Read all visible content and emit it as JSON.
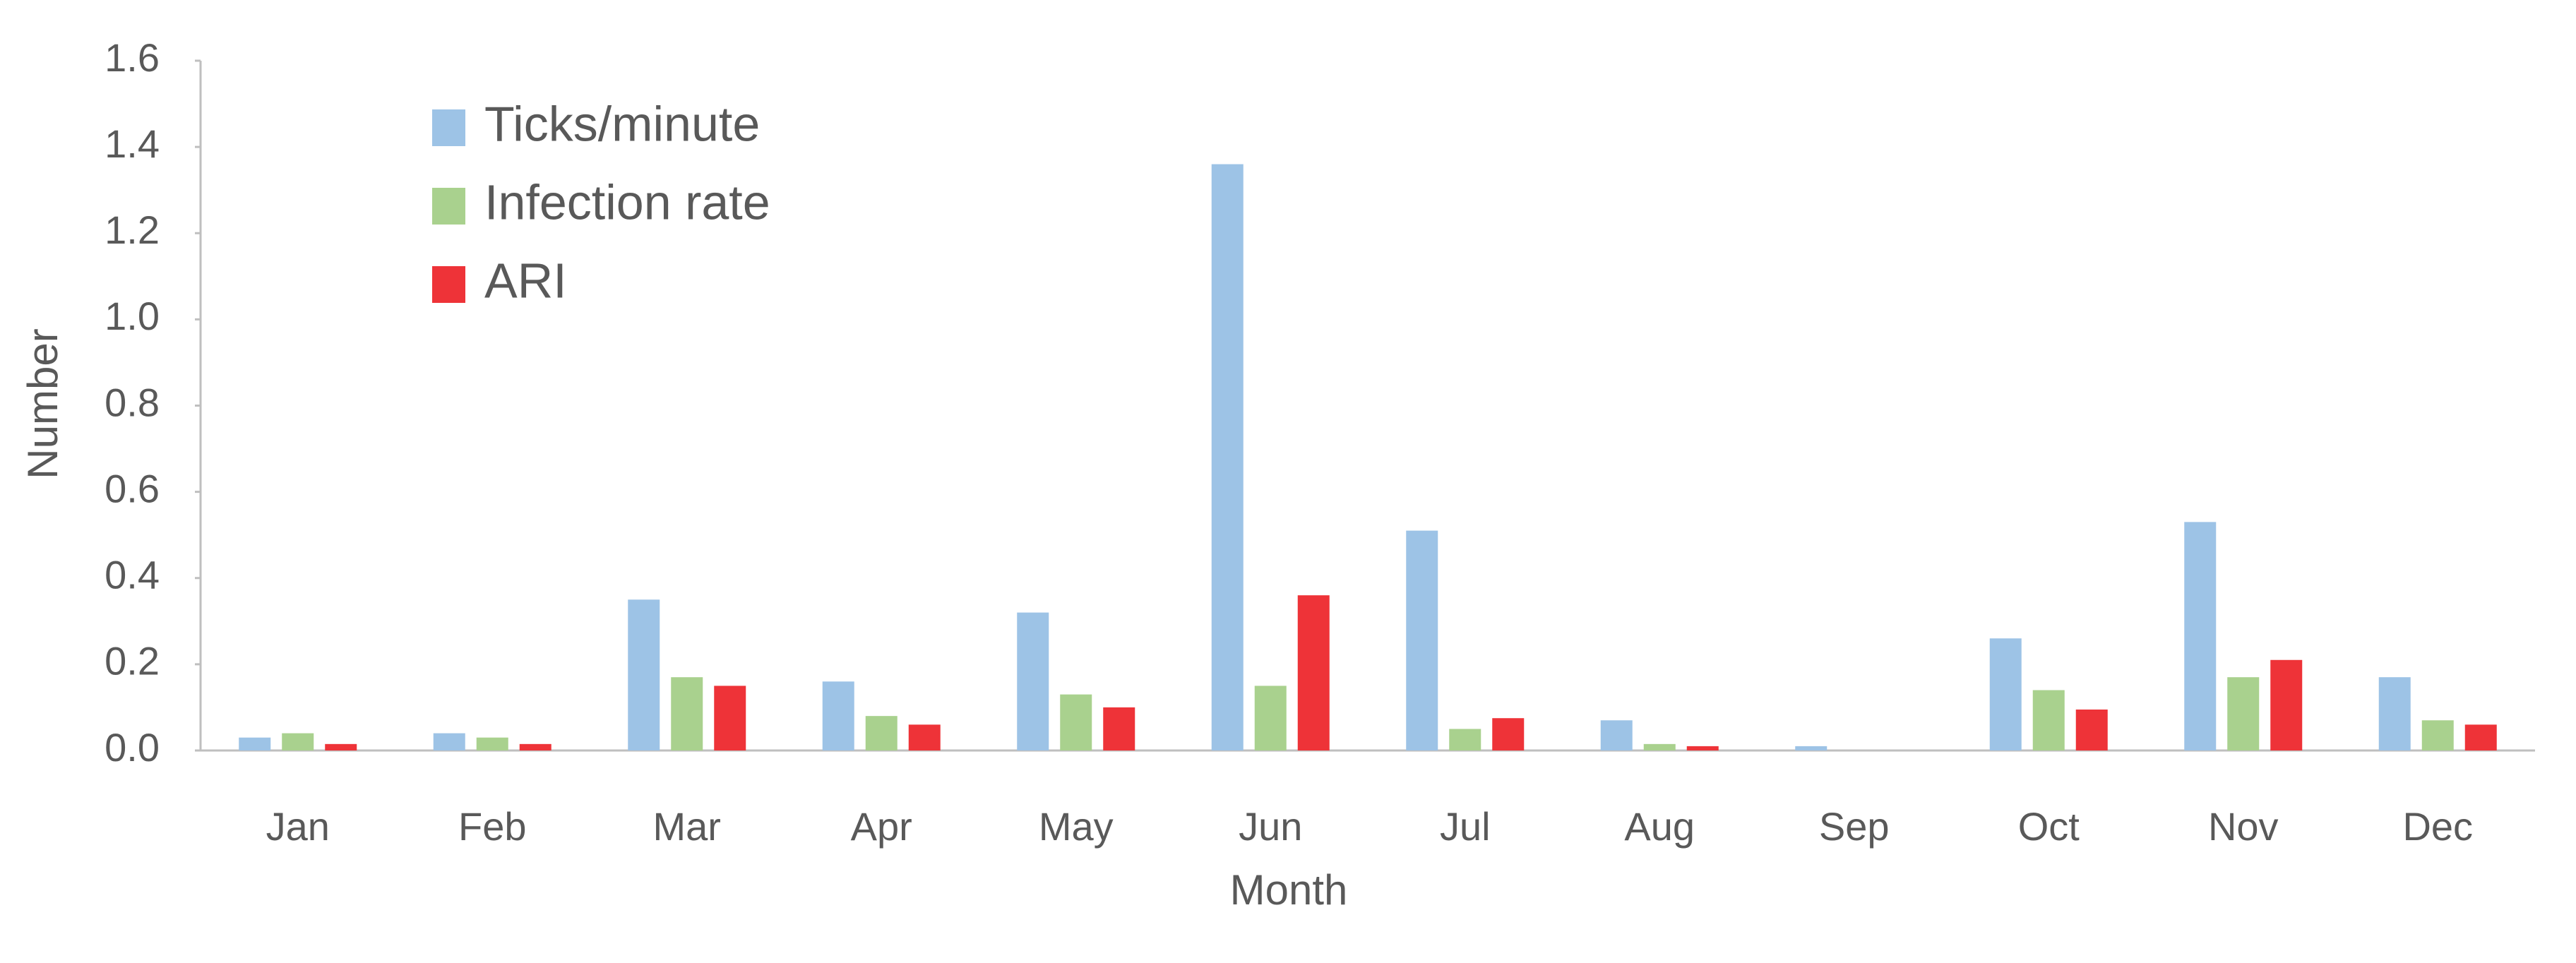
{
  "chart_data": {
    "type": "bar",
    "x_label": "Month",
    "y_label": "Number",
    "categories": [
      "Jan",
      "Feb",
      "Mar",
      "Apr",
      "May",
      "Jun",
      "Jul",
      "Aug",
      "Sep",
      "Oct",
      "Nov",
      "Dec"
    ],
    "series": [
      {
        "name": "Ticks/minute",
        "color": "#9dc3e6",
        "values": [
          0.03,
          0.04,
          0.35,
          0.16,
          0.32,
          1.36,
          0.51,
          0.07,
          0.01,
          0.26,
          0.53,
          0.17
        ]
      },
      {
        "name": "Infection rate",
        "color": "#a9d18e",
        "values": [
          0.04,
          0.03,
          0.17,
          0.08,
          0.13,
          0.15,
          0.05,
          0.015,
          0,
          0.14,
          0.17,
          0.07
        ]
      },
      {
        "name": "ARI",
        "color": "#ee3338",
        "values": [
          0.015,
          0.015,
          0.15,
          0.06,
          0.1,
          0.36,
          0.075,
          0.01,
          0,
          0.095,
          0.21,
          0.06
        ]
      }
    ],
    "ylim": [
      0,
      1.6
    ],
    "yticks": [
      {
        "value": 0,
        "label": "0.0"
      },
      0.2,
      0.4,
      0.6,
      0.8,
      {
        "value": 1,
        "label": "1.0"
      },
      1.2,
      1.4,
      1.6
    ],
    "grid": false,
    "legend": "upper left"
  }
}
